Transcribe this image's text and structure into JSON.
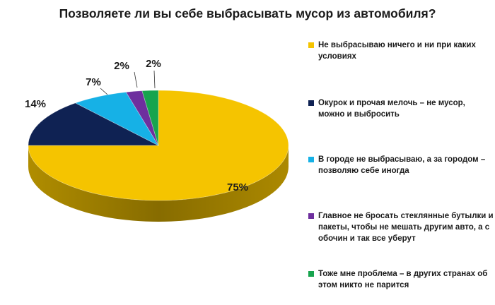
{
  "chart_data": {
    "type": "pie",
    "title": "Позволяете ли вы себе выбрасывать мусор из автомобиля?",
    "slices": [
      {
        "label": "Не выбрасываю ничего и ни при каких условиях",
        "value": 75,
        "value_label": "75%",
        "color": "#F5C400"
      },
      {
        "label": "Окурок и прочая мелочь – не мусор, можно и выбросить",
        "value": 14,
        "value_label": "14%",
        "color": "#0F2253"
      },
      {
        "label": "В городе не выбрасываю, а за городом – позволяю себе иногда",
        "value": 7,
        "value_label": "7%",
        "color": "#16B1E6"
      },
      {
        "label": "Главное не бросать стеклянные бутылки и пакеты, чтобы не мешать другим авто, а с обочин и так все уберут",
        "value": 2,
        "value_label": "2%",
        "color": "#6E2F9E"
      },
      {
        "label": "Тоже мне проблема – в других странах об этом никто не парится",
        "value": 2,
        "value_label": "2%",
        "color": "#17A44E"
      }
    ],
    "legend_position": "right",
    "style": "3d-pie"
  }
}
